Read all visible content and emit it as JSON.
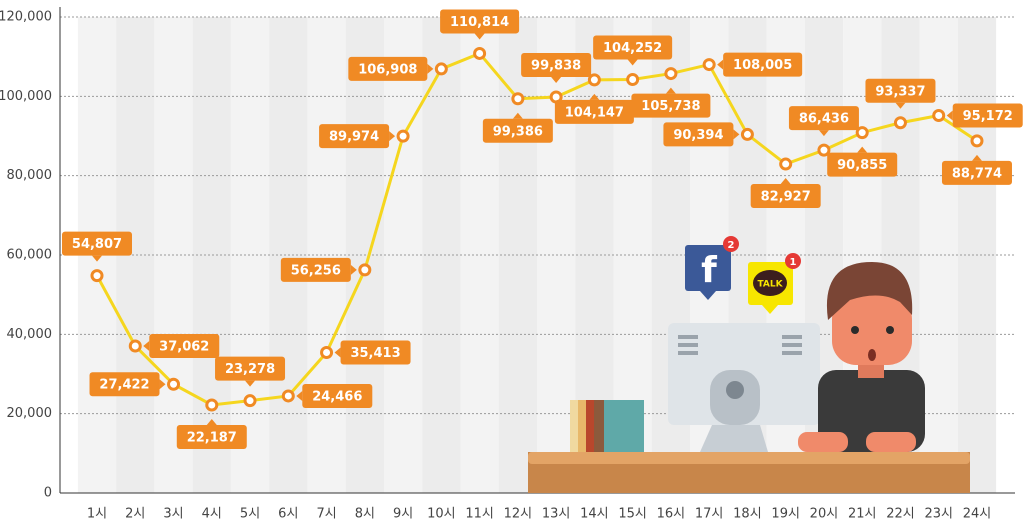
{
  "chart_data": {
    "type": "line",
    "categories": [
      "1시",
      "2시",
      "3시",
      "4시",
      "5시",
      "6시",
      "7시",
      "8시",
      "9시",
      "10시",
      "11시",
      "12시",
      "13시",
      "14시",
      "15시",
      "16시",
      "17시",
      "18시",
      "19시",
      "20시",
      "21시",
      "22시",
      "23시",
      "24시"
    ],
    "values": [
      54807,
      37062,
      27422,
      22187,
      23278,
      24466,
      35413,
      56256,
      89974,
      106908,
      110814,
      99386,
      99838,
      104147,
      104252,
      105738,
      108005,
      90394,
      82927,
      86436,
      90855,
      93337,
      95172,
      88774
    ],
    "value_labels": [
      "54,807",
      "37,062",
      "27,422",
      "22,187",
      "23,278",
      "24,466",
      "35,413",
      "56,256",
      "89,974",
      "106,908",
      "110,814",
      "99,386",
      "99,838",
      "104,147",
      "104,252",
      "105,738",
      "108,005",
      "90,394",
      "82,927",
      "86,436",
      "90,855",
      "93,337",
      "95,172",
      "88,774"
    ],
    "color": "#f5d61e",
    "marker_color": "#f08a24",
    "ylim": [
      0,
      120000
    ],
    "yticks": [
      0,
      {
        "value": 20000,
        "label": "20,000"
      },
      {
        "value": 40000,
        "label": "40,000"
      },
      {
        "value": 60000,
        "label": "60,000"
      },
      {
        "value": 80000,
        "label": "80,000"
      },
      {
        "value": 100000,
        "label": "100,000"
      },
      {
        "value": 120000,
        "label": "120,000"
      }
    ],
    "grid": true
  },
  "illustration": {
    "facebook_icon": "f",
    "facebook_badge": "2",
    "kakao_label": "TALK",
    "kakao_badge": "1"
  }
}
